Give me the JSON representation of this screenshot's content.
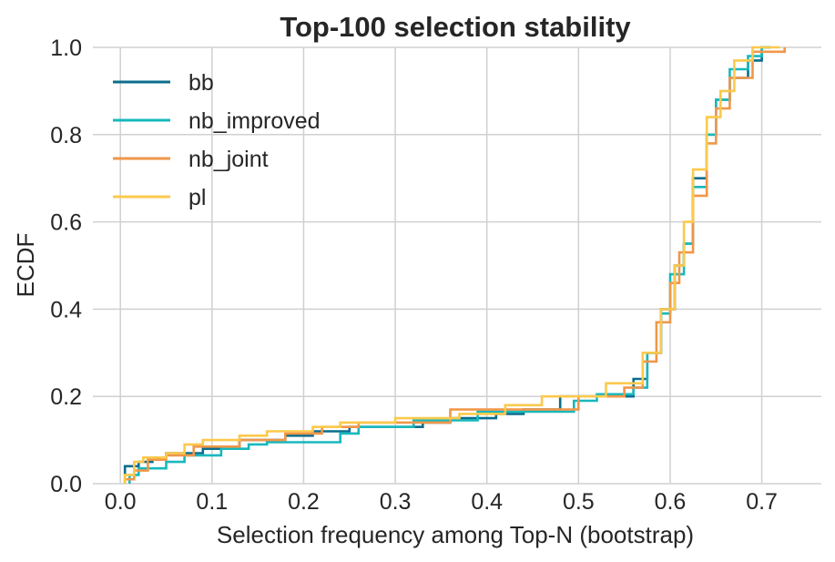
{
  "chart_data": {
    "type": "line",
    "subtype": "ecdf-step",
    "title": "Top-100 selection stability",
    "xlabel": "Selection frequency among Top-N (bootstrap)",
    "ylabel": "ECDF",
    "xlim": [
      -0.03,
      0.765
    ],
    "ylim": [
      0.0,
      1.0
    ],
    "xticks": [
      0.0,
      0.1,
      0.2,
      0.3,
      0.4,
      0.5,
      0.6,
      0.7
    ],
    "xtick_labels": [
      "0.0",
      "0.1",
      "0.2",
      "0.3",
      "0.4",
      "0.5",
      "0.6",
      "0.7"
    ],
    "yticks": [
      0.0,
      0.2,
      0.4,
      0.6,
      0.8,
      1.0
    ],
    "ytick_labels": [
      "0.0",
      "0.2",
      "0.4",
      "0.6",
      "0.8",
      "1.0"
    ],
    "grid": true,
    "legend_position": "upper-left",
    "series": [
      {
        "name": "bb",
        "color": "#0a6d8c",
        "points": [
          [
            0.005,
            0.0
          ],
          [
            0.005,
            0.04
          ],
          [
            0.02,
            0.04
          ],
          [
            0.02,
            0.05
          ],
          [
            0.035,
            0.05
          ],
          [
            0.035,
            0.06
          ],
          [
            0.05,
            0.06
          ],
          [
            0.05,
            0.07
          ],
          [
            0.09,
            0.07
          ],
          [
            0.09,
            0.08
          ],
          [
            0.13,
            0.08
          ],
          [
            0.13,
            0.1
          ],
          [
            0.18,
            0.1
          ],
          [
            0.18,
            0.11
          ],
          [
            0.21,
            0.11
          ],
          [
            0.21,
            0.12
          ],
          [
            0.25,
            0.12
          ],
          [
            0.25,
            0.13
          ],
          [
            0.33,
            0.13
          ],
          [
            0.33,
            0.14
          ],
          [
            0.36,
            0.14
          ],
          [
            0.36,
            0.15
          ],
          [
            0.41,
            0.15
          ],
          [
            0.41,
            0.16
          ],
          [
            0.44,
            0.16
          ],
          [
            0.44,
            0.17
          ],
          [
            0.48,
            0.17
          ],
          [
            0.48,
            0.2
          ],
          [
            0.56,
            0.2
          ],
          [
            0.56,
            0.24
          ],
          [
            0.575,
            0.24
          ],
          [
            0.575,
            0.3
          ],
          [
            0.59,
            0.3
          ],
          [
            0.59,
            0.4
          ],
          [
            0.605,
            0.4
          ],
          [
            0.605,
            0.5
          ],
          [
            0.615,
            0.5
          ],
          [
            0.615,
            0.55
          ],
          [
            0.625,
            0.55
          ],
          [
            0.625,
            0.7
          ],
          [
            0.64,
            0.7
          ],
          [
            0.64,
            0.8
          ],
          [
            0.65,
            0.8
          ],
          [
            0.65,
            0.88
          ],
          [
            0.665,
            0.88
          ],
          [
            0.665,
            0.93
          ],
          [
            0.685,
            0.93
          ],
          [
            0.685,
            0.97
          ],
          [
            0.7,
            0.97
          ],
          [
            0.7,
            1.0
          ],
          [
            0.71,
            1.0
          ]
        ]
      },
      {
        "name": "nb_improved",
        "color": "#17b8bd",
        "points": [
          [
            0.01,
            0.0
          ],
          [
            0.01,
            0.02
          ],
          [
            0.02,
            0.02
          ],
          [
            0.02,
            0.035
          ],
          [
            0.05,
            0.035
          ],
          [
            0.05,
            0.05
          ],
          [
            0.07,
            0.05
          ],
          [
            0.07,
            0.065
          ],
          [
            0.11,
            0.065
          ],
          [
            0.11,
            0.08
          ],
          [
            0.14,
            0.08
          ],
          [
            0.14,
            0.09
          ],
          [
            0.16,
            0.09
          ],
          [
            0.16,
            0.095
          ],
          [
            0.24,
            0.095
          ],
          [
            0.24,
            0.115
          ],
          [
            0.26,
            0.115
          ],
          [
            0.26,
            0.13
          ],
          [
            0.32,
            0.13
          ],
          [
            0.32,
            0.145
          ],
          [
            0.39,
            0.145
          ],
          [
            0.39,
            0.165
          ],
          [
            0.495,
            0.165
          ],
          [
            0.495,
            0.19
          ],
          [
            0.52,
            0.19
          ],
          [
            0.52,
            0.205
          ],
          [
            0.56,
            0.205
          ],
          [
            0.56,
            0.22
          ],
          [
            0.575,
            0.22
          ],
          [
            0.575,
            0.3
          ],
          [
            0.59,
            0.3
          ],
          [
            0.59,
            0.39
          ],
          [
            0.6,
            0.39
          ],
          [
            0.6,
            0.48
          ],
          [
            0.615,
            0.48
          ],
          [
            0.615,
            0.55
          ],
          [
            0.625,
            0.55
          ],
          [
            0.625,
            0.68
          ],
          [
            0.64,
            0.68
          ],
          [
            0.64,
            0.8
          ],
          [
            0.65,
            0.8
          ],
          [
            0.65,
            0.88
          ],
          [
            0.665,
            0.88
          ],
          [
            0.665,
            0.95
          ],
          [
            0.685,
            0.95
          ],
          [
            0.685,
            0.98
          ],
          [
            0.7,
            0.98
          ],
          [
            0.7,
            1.0
          ],
          [
            0.71,
            1.0
          ]
        ]
      },
      {
        "name": "nb_joint",
        "color": "#f0974a",
        "points": [
          [
            0.005,
            0.0
          ],
          [
            0.005,
            0.01
          ],
          [
            0.015,
            0.01
          ],
          [
            0.015,
            0.03
          ],
          [
            0.03,
            0.03
          ],
          [
            0.03,
            0.055
          ],
          [
            0.05,
            0.055
          ],
          [
            0.05,
            0.065
          ],
          [
            0.08,
            0.065
          ],
          [
            0.08,
            0.085
          ],
          [
            0.13,
            0.085
          ],
          [
            0.13,
            0.1
          ],
          [
            0.18,
            0.1
          ],
          [
            0.18,
            0.115
          ],
          [
            0.22,
            0.115
          ],
          [
            0.22,
            0.13
          ],
          [
            0.26,
            0.13
          ],
          [
            0.26,
            0.14
          ],
          [
            0.36,
            0.14
          ],
          [
            0.36,
            0.17
          ],
          [
            0.5,
            0.17
          ],
          [
            0.5,
            0.2
          ],
          [
            0.55,
            0.2
          ],
          [
            0.55,
            0.22
          ],
          [
            0.57,
            0.22
          ],
          [
            0.57,
            0.28
          ],
          [
            0.585,
            0.28
          ],
          [
            0.585,
            0.37
          ],
          [
            0.6,
            0.37
          ],
          [
            0.6,
            0.46
          ],
          [
            0.61,
            0.46
          ],
          [
            0.61,
            0.53
          ],
          [
            0.625,
            0.53
          ],
          [
            0.625,
            0.66
          ],
          [
            0.64,
            0.66
          ],
          [
            0.64,
            0.78
          ],
          [
            0.65,
            0.78
          ],
          [
            0.65,
            0.86
          ],
          [
            0.665,
            0.86
          ],
          [
            0.665,
            0.93
          ],
          [
            0.69,
            0.93
          ],
          [
            0.69,
            0.99
          ],
          [
            0.725,
            0.99
          ],
          [
            0.725,
            1.0
          ]
        ]
      },
      {
        "name": "pl",
        "color": "#fbc94c",
        "points": [
          [
            0.005,
            0.0
          ],
          [
            0.005,
            0.02
          ],
          [
            0.015,
            0.02
          ],
          [
            0.015,
            0.05
          ],
          [
            0.025,
            0.05
          ],
          [
            0.025,
            0.06
          ],
          [
            0.05,
            0.06
          ],
          [
            0.05,
            0.07
          ],
          [
            0.07,
            0.07
          ],
          [
            0.07,
            0.09
          ],
          [
            0.09,
            0.09
          ],
          [
            0.09,
            0.1
          ],
          [
            0.13,
            0.1
          ],
          [
            0.13,
            0.11
          ],
          [
            0.16,
            0.11
          ],
          [
            0.16,
            0.12
          ],
          [
            0.21,
            0.12
          ],
          [
            0.21,
            0.13
          ],
          [
            0.24,
            0.13
          ],
          [
            0.24,
            0.14
          ],
          [
            0.3,
            0.14
          ],
          [
            0.3,
            0.15
          ],
          [
            0.37,
            0.15
          ],
          [
            0.37,
            0.16
          ],
          [
            0.42,
            0.16
          ],
          [
            0.42,
            0.18
          ],
          [
            0.46,
            0.18
          ],
          [
            0.46,
            0.2
          ],
          [
            0.53,
            0.2
          ],
          [
            0.53,
            0.23
          ],
          [
            0.57,
            0.23
          ],
          [
            0.57,
            0.3
          ],
          [
            0.59,
            0.3
          ],
          [
            0.59,
            0.4
          ],
          [
            0.605,
            0.4
          ],
          [
            0.605,
            0.5
          ],
          [
            0.615,
            0.5
          ],
          [
            0.615,
            0.6
          ],
          [
            0.625,
            0.6
          ],
          [
            0.625,
            0.72
          ],
          [
            0.64,
            0.72
          ],
          [
            0.64,
            0.84
          ],
          [
            0.655,
            0.84
          ],
          [
            0.655,
            0.9
          ],
          [
            0.67,
            0.9
          ],
          [
            0.67,
            0.97
          ],
          [
            0.69,
            0.97
          ],
          [
            0.69,
            1.0
          ],
          [
            0.72,
            1.0
          ]
        ]
      }
    ]
  }
}
